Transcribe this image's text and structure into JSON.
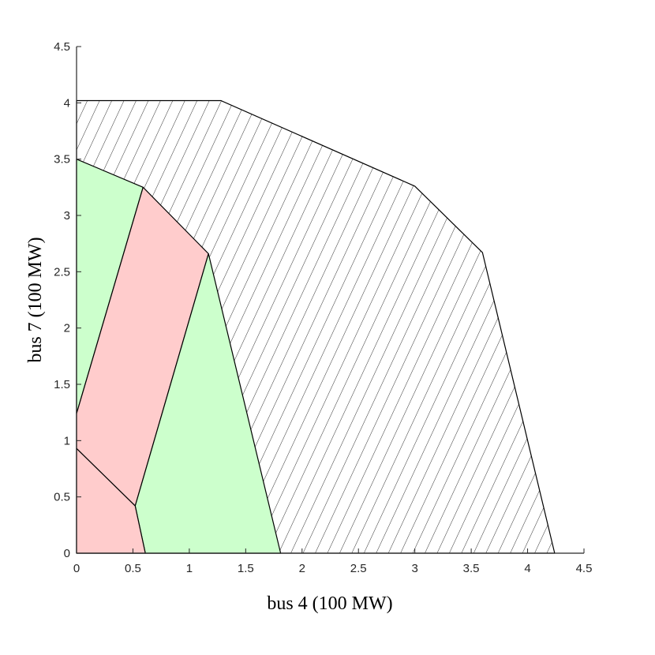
{
  "chart_data": {
    "type": "area",
    "xlabel": "bus 4 (100 MW)",
    "ylabel": "bus 7 (100 MW)",
    "xlim": [
      0,
      4.5
    ],
    "ylim": [
      0,
      4.5
    ],
    "xticks": [
      "0",
      "0.5",
      "1",
      "1.5",
      "2",
      "2.5",
      "3",
      "3.5",
      "4",
      "4.5"
    ],
    "yticks": [
      "0",
      "0.5",
      "1",
      "1.5",
      "2",
      "2.5",
      "3",
      "3.5",
      "4",
      "4.5"
    ],
    "grid": false,
    "legend": "none",
    "regions": [
      {
        "fill": "hatched",
        "color": "#ffffff",
        "vertices": [
          [
            0,
            0
          ],
          [
            0,
            4.02
          ],
          [
            1.28,
            4.02
          ],
          [
            3.0,
            3.26
          ],
          [
            3.6,
            2.67
          ],
          [
            4.24,
            0
          ]
        ]
      },
      {
        "fill": "solid",
        "color": "#ccffcc",
        "vertices": [
          [
            0,
            1.24
          ],
          [
            0,
            3.5
          ],
          [
            0.59,
            3.25
          ]
        ]
      },
      {
        "fill": "solid",
        "color": "#ffcccc",
        "vertices": [
          [
            0,
            0.93
          ],
          [
            0,
            1.24
          ],
          [
            0.59,
            3.25
          ],
          [
            1.17,
            2.66
          ],
          [
            0.52,
            0.42
          ]
        ]
      },
      {
        "fill": "solid",
        "color": "#ccffcc",
        "vertices": [
          [
            0.52,
            0.42
          ],
          [
            1.17,
            2.66
          ],
          [
            1.81,
            0
          ],
          [
            0.61,
            0
          ]
        ]
      },
      {
        "fill": "solid",
        "color": "#ffcccc",
        "vertices": [
          [
            0,
            0
          ],
          [
            0,
            0.93
          ],
          [
            0.52,
            0.42
          ],
          [
            0.61,
            0
          ]
        ]
      }
    ]
  }
}
